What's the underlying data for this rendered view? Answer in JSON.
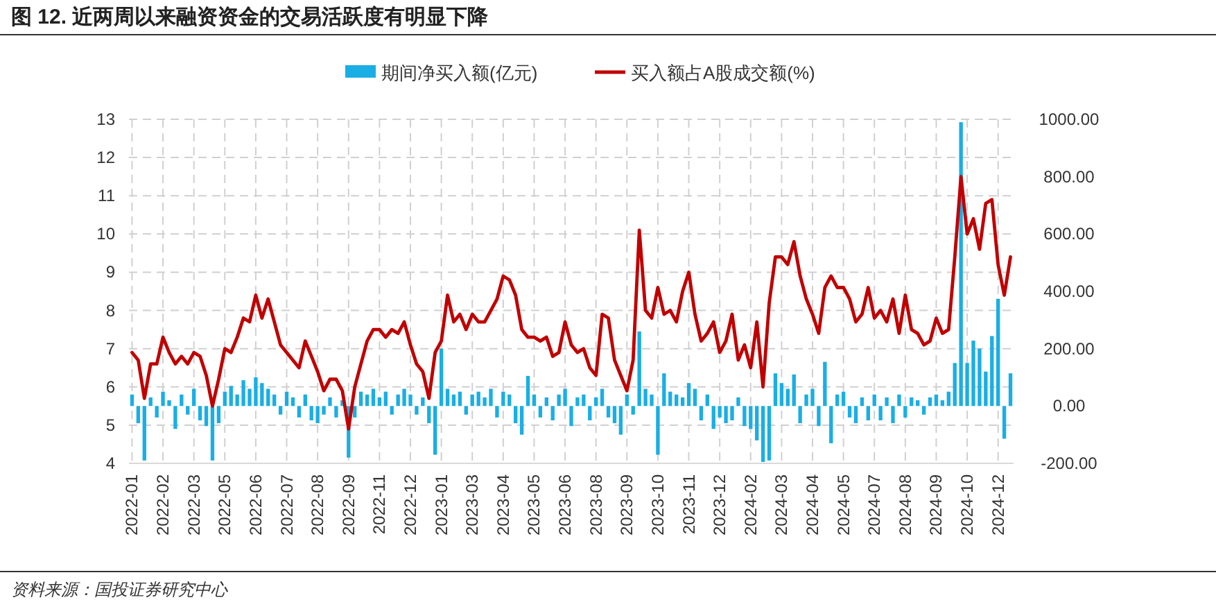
{
  "chart_data": {
    "type": "bar",
    "title": "图 12. 近两周以来融资资金的交易活跃度有明显下降",
    "categories": [
      "2022-01",
      null,
      null,
      null,
      null,
      "2022-02",
      null,
      null,
      null,
      null,
      "2022-03",
      null,
      null,
      null,
      null,
      "2022-05",
      null,
      null,
      null,
      null,
      "2022-06",
      null,
      null,
      null,
      null,
      "2022-07",
      null,
      null,
      null,
      null,
      "2022-08",
      null,
      null,
      null,
      null,
      "2022-09",
      null,
      null,
      null,
      null,
      "2022-11",
      null,
      null,
      null,
      null,
      "2022-12",
      null,
      null,
      null,
      null,
      "2023-01",
      null,
      null,
      null,
      null,
      "2023-03",
      null,
      null,
      null,
      null,
      "2023-04",
      null,
      null,
      null,
      null,
      "2023-05",
      null,
      null,
      null,
      null,
      "2023-06",
      null,
      null,
      null,
      null,
      "2023-08",
      null,
      null,
      null,
      null,
      "2023-09",
      null,
      null,
      null,
      null,
      "2023-10",
      null,
      null,
      null,
      null,
      "2023-11",
      null,
      null,
      null,
      null,
      "2023-12",
      null,
      null,
      null,
      null,
      "2024-02",
      null,
      null,
      null,
      null,
      "2024-03",
      null,
      null,
      null,
      null,
      "2024-04",
      null,
      null,
      null,
      null,
      "2024-05",
      null,
      null,
      null,
      null,
      "2024-07",
      null,
      null,
      null,
      null,
      "2024-08",
      null,
      null,
      null,
      null,
      "2024-09",
      null,
      null,
      null,
      null,
      "2024-10",
      null,
      null,
      null,
      null,
      "2024-12",
      null,
      null
    ],
    "series": [
      {
        "name": "期间净买入额(亿元)",
        "axis": "y2",
        "color": "#1aaee5",
        "values": [
          40,
          -60,
          -190,
          30,
          -40,
          50,
          20,
          -80,
          40,
          -30,
          60,
          -50,
          -70,
          -190,
          -60,
          50,
          70,
          40,
          90,
          60,
          100,
          80,
          60,
          40,
          -30,
          50,
          30,
          -40,
          40,
          -50,
          -60,
          -30,
          30,
          -40,
          20,
          -180,
          -40,
          50,
          40,
          60,
          30,
          50,
          -30,
          40,
          60,
          40,
          -30,
          30,
          -60,
          -170,
          200,
          60,
          40,
          50,
          -30,
          40,
          50,
          30,
          60,
          -40,
          50,
          40,
          -60,
          -100,
          105,
          40,
          -40,
          30,
          -50,
          40,
          60,
          -70,
          30,
          40,
          -50,
          30,
          60,
          -40,
          -60,
          -100,
          40,
          -30,
          260,
          60,
          40,
          -170,
          114,
          50,
          40,
          30,
          80,
          60,
          -50,
          40,
          -80,
          -40,
          -60,
          -50,
          30,
          -70,
          -80,
          -120,
          -195,
          -190,
          114,
          80,
          60,
          110,
          -60,
          40,
          60,
          -70,
          154,
          -130,
          40,
          50,
          -40,
          -60,
          30,
          -50,
          40,
          -50,
          30,
          -60,
          40,
          -40,
          30,
          20,
          -30,
          30,
          40,
          20,
          50,
          150,
          990,
          150,
          228,
          200,
          120,
          244,
          374,
          -114,
          114
        ]
      },
      {
        "name": "买入额占A股成交额(%)",
        "type": "line",
        "color": "#c00000",
        "values": [
          6.9,
          6.7,
          5.7,
          6.6,
          6.6,
          7.3,
          6.9,
          6.6,
          6.8,
          6.6,
          6.9,
          6.8,
          6.3,
          5.5,
          6.2,
          7.0,
          6.9,
          7.3,
          7.8,
          7.7,
          8.4,
          7.8,
          8.3,
          7.7,
          7.1,
          6.9,
          6.7,
          6.5,
          7.2,
          6.8,
          6.4,
          5.9,
          6.2,
          6.2,
          5.9,
          4.9,
          6.0,
          6.6,
          7.2,
          7.5,
          7.5,
          7.3,
          7.5,
          7.4,
          7.7,
          7.1,
          6.6,
          6.4,
          5.7,
          6.9,
          7.2,
          8.4,
          7.7,
          7.9,
          7.5,
          7.9,
          7.7,
          7.7,
          8.0,
          8.3,
          8.9,
          8.8,
          8.4,
          7.5,
          7.3,
          7.3,
          7.2,
          7.3,
          6.8,
          6.9,
          7.7,
          7.1,
          6.9,
          7.0,
          6.5,
          6.3,
          7.9,
          7.8,
          6.7,
          6.3,
          5.9,
          6.7,
          10.1,
          8.0,
          7.8,
          8.6,
          7.9,
          8.0,
          7.7,
          8.5,
          9.0,
          7.9,
          7.2,
          7.4,
          7.7,
          6.9,
          7.2,
          7.9,
          6.7,
          7.1,
          6.5,
          7.7,
          6.0,
          8.2,
          9.4,
          9.4,
          9.2,
          9.8,
          8.9,
          8.3,
          7.9,
          7.4,
          8.6,
          8.9,
          8.6,
          8.6,
          8.3,
          7.7,
          7.9,
          8.6,
          7.8,
          8.0,
          7.7,
          8.3,
          7.4,
          8.4,
          7.5,
          7.4,
          7.1,
          7.2,
          7.8,
          7.4,
          7.5,
          9.4,
          11.5,
          10.0,
          10.4,
          9.6,
          10.8,
          10.9,
          9.2,
          8.4,
          9.4
        ]
      }
    ],
    "ylim": [
      4,
      13
    ],
    "yticks": [
      4,
      5,
      6,
      7,
      8,
      9,
      10,
      11,
      12,
      13
    ],
    "y2lim": [
      -200,
      1000
    ],
    "y2ticks": [
      {
        "value": -200,
        "label": "-200.00"
      },
      {
        "value": 0,
        "label": "0.00"
      },
      {
        "value": 200,
        "label": "200.00"
      },
      {
        "value": 400,
        "label": "400.00"
      },
      {
        "value": 600,
        "label": "600.00"
      },
      {
        "value": 800,
        "label": "800.00"
      },
      {
        "value": 1000,
        "label": "1000.00"
      }
    ],
    "grid": true,
    "legend": "top",
    "annotations": [
      "资料来源：国投证券研究中心"
    ]
  }
}
